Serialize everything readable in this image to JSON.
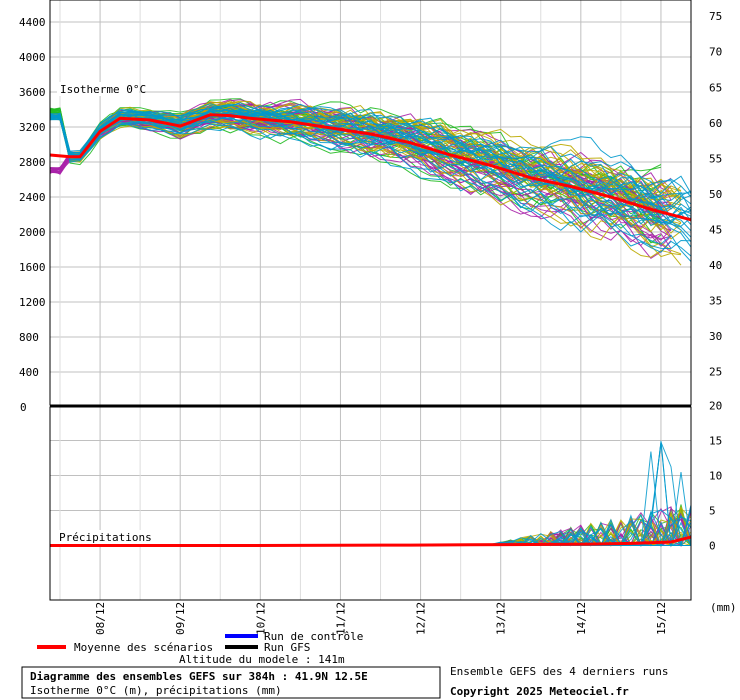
{
  "chart_data": [
    {
      "type": "line",
      "title": "Diagramme des ensembles GEFS sur 384h : 41.9N 12.5E",
      "subtitle": "Isotherme 0°C (m), précipitations (mm)",
      "series_label": "Isotherme 0°C",
      "y_left": {
        "range": [
          0,
          4600
        ],
        "ticks": [
          "4400",
          "4000",
          "3600",
          "3200",
          "2800",
          "2400",
          "2000",
          "1600",
          "1200",
          "800",
          "400",
          "0"
        ]
      },
      "y_right": {
        "range": [
          20,
          77
        ],
        "ticks": [
          "75",
          "70",
          "65",
          "60",
          "55",
          "50",
          "45",
          "40",
          "35",
          "30",
          "25"
        ]
      },
      "x": {
        "range_hours": [
          0,
          384
        ],
        "ticks": [
          "08/12",
          "09/12",
          "10/12",
          "11/12",
          "12/12",
          "13/12",
          "14/12",
          "15/12"
        ]
      },
      "mean_series": {
        "name": "Moyenne des scénarios",
        "hours": [
          0,
          12,
          18,
          30,
          42,
          60,
          78,
          96,
          108,
          120,
          144,
          168,
          192,
          216,
          240,
          264,
          288,
          312,
          336,
          360,
          384
        ],
        "values": [
          2880,
          2860,
          2860,
          3150,
          3300,
          3280,
          3210,
          3340,
          3330,
          3300,
          3260,
          3190,
          3120,
          3020,
          2880,
          2760,
          2620,
          2520,
          2400,
          2260,
          2140
        ]
      }
    },
    {
      "type": "line",
      "series_label": "Précipitations",
      "y_right": {
        "range": [
          -7.5,
          20
        ],
        "ticks": [
          "20",
          "15",
          "10",
          "5",
          "0"
        ]
      },
      "unit": "(mm)",
      "mean_series": {
        "name": "Moyenne des scénarios",
        "hours": [
          0,
          120,
          216,
          252,
          288,
          324,
          348,
          372,
          384
        ],
        "values": [
          0,
          0,
          0.05,
          0.1,
          0.15,
          0.2,
          0.3,
          0.5,
          1.2
        ]
      }
    }
  ],
  "legend": {
    "mean": "Moyenne des scénarios",
    "control": "Run de contrôle",
    "gfs": "Run GFS",
    "altitude": "Altitude du modele : 141m"
  },
  "footer": {
    "title": "Diagramme des ensembles GEFS sur 384h : 41.9N 12.5E",
    "subtitle": "Isotherme 0°C (m), précipitations (mm)",
    "runs": "Ensemble GEFS des 4 derniers runs",
    "copyright": "Copyright 2025 Meteociel.fr"
  },
  "colors": {
    "mean": "#ff0000",
    "control": "#0000ff",
    "gfs": "#000000",
    "ens_green": "#22bb22",
    "ens_purple": "#aa22aa",
    "ens_olive": "#bbaa00",
    "ens_cyan": "#0099cc",
    "grid": "#c0c0c0"
  }
}
